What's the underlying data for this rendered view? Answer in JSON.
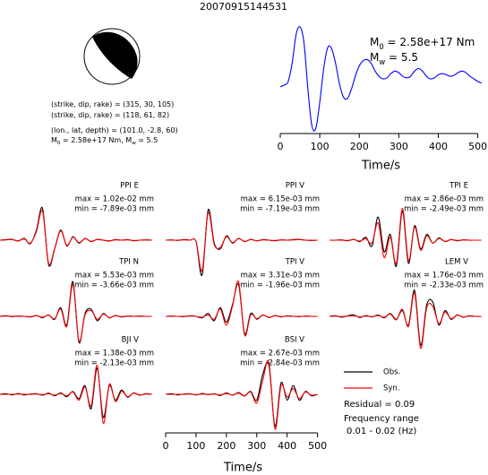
{
  "title": "20070915144531",
  "source_params": {
    "lines": [
      {
        "parts": [
          "(strike, dip, rake) = (315, 30, 105)"
        ]
      },
      {
        "parts": [
          "(strike, dip, rake) = (118, 61, 82)"
        ]
      },
      {
        "parts": [
          "(lon., lat, depth) = (101.0, -2.8, 60)"
        ]
      },
      {
        "parts": [
          "M",
          "0",
          " = 2.58e+17 Nm, M",
          "w",
          " = 5.5"
        ]
      }
    ]
  },
  "chart_data": [
    {
      "type": "line",
      "color": "#0000ff",
      "x": [
        0,
        10,
        20,
        30,
        40,
        50,
        60,
        70,
        80,
        90,
        100,
        110,
        120,
        130,
        140,
        150,
        160,
        170,
        180,
        190,
        200,
        210,
        220,
        230,
        240,
        250,
        260,
        270,
        280,
        290,
        300,
        310,
        320,
        330,
        340,
        350,
        360,
        370,
        380,
        390,
        400,
        410,
        420,
        430,
        440,
        450,
        460,
        470,
        480,
        490,
        500,
        510
      ],
      "values": [
        -0.15,
        -0.12,
        -0.05,
        0.3,
        0.85,
        1.0,
        0.7,
        -0.2,
        -0.9,
        -0.95,
        -0.45,
        0.2,
        0.6,
        0.58,
        0.3,
        -0.1,
        -0.35,
        -0.38,
        -0.2,
        0.05,
        0.25,
        0.35,
        0.37,
        0.3,
        0.15,
        0.05,
        0.0,
        0.02,
        0.1,
        0.15,
        0.12,
        0.05,
        0.02,
        0.05,
        0.15,
        0.2,
        0.15,
        0.05,
        0.0,
        0.02,
        0.08,
        0.1,
        0.08,
        0.05,
        0.07,
        0.12,
        0.15,
        0.12,
        0.05,
        0.0,
        -0.05,
        -0.08
      ],
      "xlim": [
        0,
        510
      ],
      "ylim": [
        -1,
        1
      ],
      "xticks": [
        0,
        100,
        200,
        300,
        400,
        500
      ],
      "xlabel": "Time/s",
      "annotations": [
        {
          "parts": [
            "M",
            "0",
            " = 2.58e+17 Nm"
          ]
        },
        {
          "parts": [
            "M",
            "w",
            " = 5.5"
          ]
        }
      ]
    },
    {
      "type": "waveform",
      "x": [
        0,
        20,
        40,
        60,
        80,
        100,
        120,
        140,
        160,
        180,
        200,
        220,
        240,
        260,
        280,
        300,
        320,
        340,
        360,
        380,
        400,
        420,
        440,
        460,
        480,
        500
      ],
      "xlim": [
        0,
        510
      ],
      "ylim": [
        -1.3,
        1.3
      ],
      "xticks": [
        0,
        100,
        200,
        300,
        400,
        500
      ],
      "xlabel": "Time/s",
      "series_styles": [
        {
          "name": "Obs.",
          "color": "#000000"
        },
        {
          "name": "Syn.",
          "color": "#ff0000"
        }
      ],
      "residual_label": "Residual = 0.09",
      "frequency_label": "Frequency range",
      "frequency_range": "0.01 - 0.02 (Hz)",
      "panels": [
        {
          "station": "PPI E",
          "max_label": "max = 1.02e-02 mm",
          "min_label": "min = -7.89e-03 mm",
          "obs": [
            0,
            0.02,
            0.03,
            -0.03,
            0.06,
            -0.12,
            0.35,
            1.1,
            -0.85,
            -0.3,
            0.35,
            -0.2,
            0.12,
            -0.1,
            0.06,
            -0.05,
            0.03,
            0,
            -0.03,
            0.02,
            0,
            0.02,
            -0.02,
            0,
            0.01,
            0
          ],
          "syn": [
            0,
            0.01,
            0.02,
            -0.02,
            0.04,
            -0.1,
            0.3,
            1.0,
            -0.8,
            -0.28,
            0.32,
            -0.18,
            0.1,
            -0.08,
            0.05,
            -0.04,
            0.02,
            0,
            -0.02,
            0.01,
            0,
            0.01,
            -0.01,
            0,
            0.01,
            0
          ]
        },
        {
          "station": "PPI V",
          "max_label": "max = 6.15e-03 mm",
          "min_label": "min = -7.19e-03 mm",
          "obs": [
            0,
            0.01,
            -0.01,
            0.02,
            0,
            -0.05,
            -1.2,
            1.05,
            -0.1,
            -0.3,
            0.15,
            -0.1,
            0.06,
            -0.05,
            0.03,
            -0.02,
            0.02,
            0,
            -0.02,
            0.01,
            0,
            0.02,
            0.03,
            0,
            -0.01,
            0
          ],
          "syn": [
            0,
            0,
            0,
            0.01,
            0,
            -0.04,
            -1.05,
            0.95,
            -0.15,
            -0.25,
            0.12,
            -0.08,
            0.05,
            -0.04,
            0.02,
            -0.02,
            0.01,
            0,
            -0.01,
            0.01,
            0,
            0.01,
            0.02,
            0,
            0,
            0
          ]
        },
        {
          "station": "TPI E",
          "max_label": "max = 2.86e-03 mm",
          "min_label": "min = -2.49e-03 mm",
          "obs": [
            0,
            0,
            0.01,
            -0.02,
            0.03,
            -0.05,
            0.1,
            -0.2,
            0.8,
            -0.4,
            0.2,
            -0.9,
            1.0,
            -0.8,
            0.5,
            -0.3,
            0.2,
            -0.1,
            0.08,
            -0.05,
            0.02,
            -0.02,
            0.01,
            0,
            0,
            0
          ],
          "syn": [
            0,
            0,
            0,
            -0.01,
            0.02,
            -0.03,
            0.05,
            -0.1,
            0.6,
            -0.6,
            0.1,
            -0.8,
            1.1,
            -0.7,
            0.45,
            -0.35,
            0.15,
            -0.1,
            0.06,
            -0.04,
            0.02,
            -0.01,
            0.01,
            0,
            0,
            0
          ]
        },
        {
          "station": "TPI N",
          "max_label": "max = 5.53e-03 mm",
          "min_label": "min = -3.66e-03 mm",
          "obs": [
            0,
            0.02,
            -0.01,
            0.01,
            0,
            -0.02,
            0.03,
            -0.05,
            0.05,
            -0.1,
            0.3,
            -0.3,
            1.2,
            -0.9,
            0.1,
            0.25,
            -0.15,
            0.1,
            -0.05,
            0.03,
            -0.02,
            0.01,
            0,
            0.01,
            0,
            0
          ],
          "syn": [
            0,
            0.01,
            0,
            0.01,
            0,
            -0.01,
            0.02,
            -0.03,
            0.04,
            -0.08,
            0.25,
            -0.35,
            1.1,
            -0.85,
            0.05,
            0.2,
            -0.1,
            0.08,
            -0.04,
            0.02,
            -0.01,
            0.01,
            0,
            0,
            0,
            0
          ]
        },
        {
          "station": "TPI V",
          "max_label": "max = 3.31e-03 mm",
          "min_label": "min = -1.96e-03 mm",
          "obs": [
            0,
            0.01,
            0,
            -0.01,
            0.02,
            0,
            -0.05,
            0.1,
            -0.15,
            0.3,
            -0.2,
            0.4,
            1.1,
            -0.6,
            0.1,
            -0.1,
            0.05,
            -0.04,
            0.03,
            -0.02,
            0.02,
            0,
            -0.01,
            0.01,
            0,
            0
          ],
          "syn": [
            0,
            0,
            0,
            0,
            0.01,
            0,
            -0.03,
            0.05,
            -0.1,
            0.25,
            -0.3,
            0.35,
            1.2,
            -0.65,
            0.05,
            -0.08,
            0.04,
            -0.03,
            0.02,
            -0.01,
            0.01,
            0,
            0,
            0,
            0,
            0
          ]
        },
        {
          "station": "LEM V",
          "max_label": "max = 1.76e-03 mm",
          "min_label": "min = -2.33e-03 mm",
          "obs": [
            0,
            0.02,
            -0.03,
            0.02,
            0.05,
            -0.04,
            0.03,
            -0.02,
            0.05,
            -0.05,
            0.1,
            -0.1,
            0.2,
            -0.3,
            0.9,
            -1.0,
            0.4,
            0.5,
            -0.3,
            0.2,
            -0.1,
            0.05,
            -0.03,
            0.02,
            0,
            0
          ],
          "syn": [
            0,
            0.01,
            -0.01,
            0.01,
            0.02,
            -0.02,
            0.01,
            -0.01,
            0.03,
            -0.03,
            0.08,
            -0.12,
            0.25,
            -0.35,
            0.8,
            -1.1,
            0.3,
            0.35,
            -0.25,
            0.15,
            -0.08,
            0.04,
            -0.02,
            0.01,
            0,
            0
          ]
        },
        {
          "station": "BJI V",
          "max_label": "max = 1.38e-03 mm",
          "min_label": "min = -2.13e-03 mm",
          "obs": [
            0,
            0.02,
            -0.02,
            0.03,
            -0.02,
            0.01,
            0.02,
            -0.03,
            0.04,
            -0.05,
            0.05,
            -0.08,
            0.1,
            -0.15,
            0.3,
            -0.5,
            0.9,
            -0.8,
            0.3,
            -0.2,
            0.15,
            -0.1,
            0.05,
            -0.03,
            0.02,
            0
          ],
          "syn": [
            0,
            0,
            0,
            0.01,
            0,
            0,
            0.01,
            -0.01,
            0.02,
            -0.03,
            0.03,
            -0.05,
            0.08,
            -0.2,
            0.25,
            -0.4,
            1.0,
            -1.0,
            0.35,
            -0.25,
            0.1,
            -0.08,
            0.04,
            -0.02,
            0.01,
            0
          ]
        },
        {
          "station": "BSI V",
          "max_label": "max = 2.67e-03 mm",
          "min_label": "min = -2.84e-03 mm",
          "obs": [
            0,
            0.02,
            -0.02,
            0.01,
            0.02,
            -0.02,
            0.03,
            -0.01,
            0.02,
            -0.04,
            0.05,
            -0.03,
            0.06,
            -0.05,
            0.1,
            -0.2,
            0.7,
            1.0,
            -1.1,
            0.4,
            -0.2,
            0.3,
            -0.2,
            0.1,
            -0.05,
            0
          ],
          "syn": [
            0,
            0,
            0,
            0,
            0.01,
            -0.01,
            0.01,
            0,
            0.01,
            -0.02,
            0.03,
            -0.02,
            0.04,
            -0.06,
            0.08,
            -0.3,
            0.5,
            1.1,
            -1.2,
            0.3,
            -0.1,
            0.2,
            -0.15,
            0.08,
            -0.03,
            0
          ]
        }
      ]
    }
  ]
}
